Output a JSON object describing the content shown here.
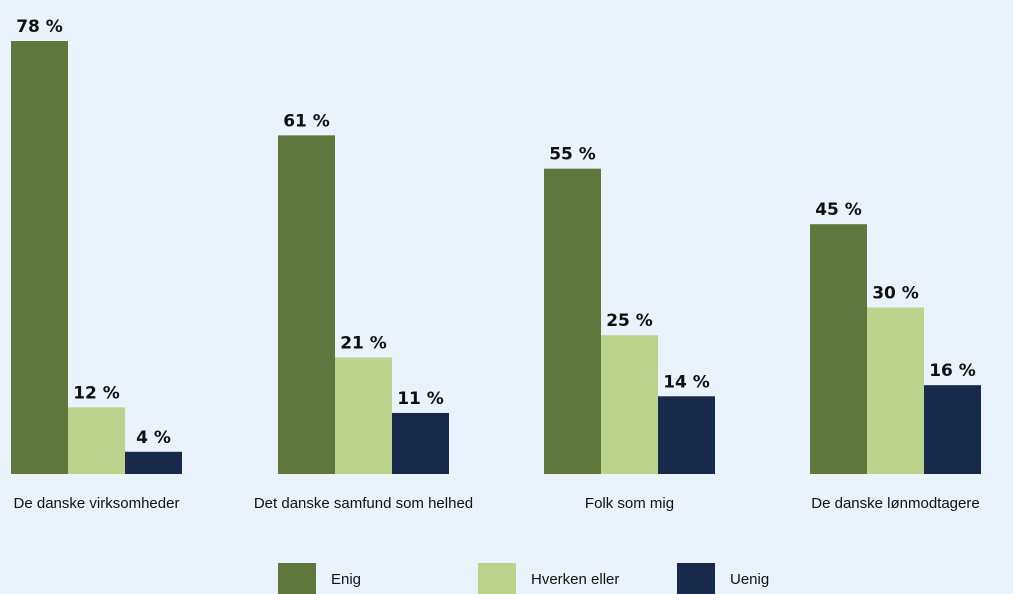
{
  "chart_data": {
    "type": "bar",
    "title": "",
    "xlabel": "",
    "ylabel": "",
    "categories": [
      "De danske virksomheder",
      "Det danske samfund som helhed",
      "Folk som mig",
      "De danske lønmodtagere"
    ],
    "series": [
      {
        "name": "Enig",
        "color": "#5e773c",
        "values": [
          78,
          61,
          55,
          45
        ],
        "labels": [
          "78 %",
          "61 %",
          "55 %",
          "45 %"
        ]
      },
      {
        "name": "Hverken eller",
        "color": "#bcd38e",
        "values": [
          12,
          21,
          25,
          30
        ],
        "labels": [
          "12 %",
          "21 %",
          "25 %",
          "30 %"
        ]
      },
      {
        "name": "Uenig",
        "color": "#172a4c",
        "values": [
          4,
          11,
          14,
          16
        ],
        "labels": [
          "4 %",
          "11 %",
          "14 %",
          "16 %"
        ]
      }
    ],
    "ylim": [
      0,
      78
    ],
    "grid": false,
    "legend_position": "bottom"
  }
}
